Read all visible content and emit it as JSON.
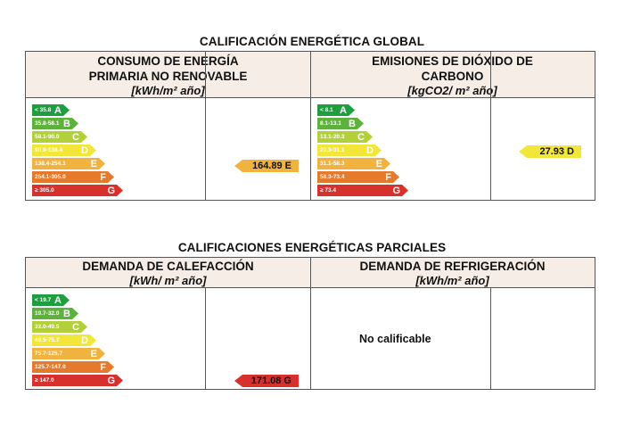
{
  "global": {
    "title": "CALIFICACIÓN ENERGÉTICA GLOBAL",
    "left": {
      "title1": "CONSUMO DE ENERGÍA",
      "title2": "PRIMARIA NO RENOVABLE",
      "unit": "[kWh/m² año]",
      "ranges": [
        "< 35.8",
        "35.8-58.1",
        "58.1-90.0",
        "90.0-138.4",
        "138.4-254.1",
        "254.1-305.0",
        "≥ 305.0"
      ],
      "value": "164.89 E",
      "value_class": "E"
    },
    "right": {
      "title1": "EMISIONES DE DIÓXIDO DE",
      "title2": "CARBONO",
      "unit": "[kgCO2/ m² año]",
      "ranges": [
        "< 8.1",
        "8.1-13.1",
        "13.1-20.3",
        "20.3-31.1",
        "31.1-58.3",
        "58.3-73.4",
        "≥ 73.4"
      ],
      "value": "27.93 D",
      "value_class": "D"
    }
  },
  "partial": {
    "title": "CALIFICACIONES ENERGÉTICAS PARCIALES",
    "left": {
      "title1": "DEMANDA DE CALEFACCIÓN",
      "unit": "[kWh/ m² año]",
      "ranges": [
        "< 19.7",
        "19.7-32.0",
        "32.0-49.5",
        "49.5-75.7",
        "75.7-125.7",
        "125.7-147.0",
        "≥ 147.0"
      ],
      "value": "171.08 G",
      "value_class": "G"
    },
    "right": {
      "title1": "DEMANDA DE REFRIGERACIÓN",
      "unit": "[kWh/m² año]",
      "status": "No calificable"
    }
  },
  "letters": [
    "A",
    "B",
    "C",
    "D",
    "E",
    "F",
    "G"
  ],
  "colors": {
    "A": "#1f9e3f",
    "B": "#5db13c",
    "C": "#b3cf3a",
    "D": "#f3e63a",
    "E": "#f0b340",
    "F": "#e67a2c",
    "G": "#d7312e",
    "header_bg": "#f6ede6"
  }
}
